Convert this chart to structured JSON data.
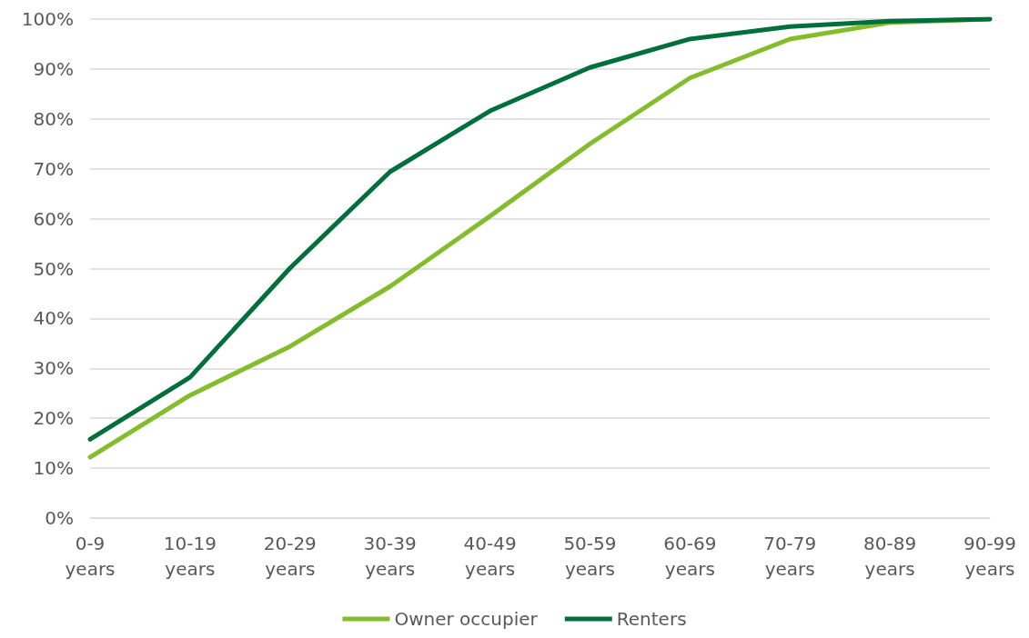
{
  "chart_data": {
    "type": "line",
    "categories": [
      "0-9 years",
      "10-19 years",
      "20-29 years",
      "30-39 years",
      "40-49 years",
      "50-59 years",
      "60-69 years",
      "70-79 years",
      "80-89 years",
      "90-99 years"
    ],
    "series": [
      {
        "name": "Owner occupier",
        "color": "#84bd2b",
        "values": [
          12.2,
          24.6,
          34.4,
          46.4,
          60.5,
          75,
          88.2,
          96,
          99.3,
          100
        ]
      },
      {
        "name": "Renters",
        "color": "#006f3c",
        "values": [
          15.8,
          28.2,
          50.1,
          69.4,
          81.6,
          90.3,
          96,
          98.5,
          99.6,
          100
        ]
      }
    ],
    "ylim": [
      0,
      100
    ],
    "yticks": [
      {
        "value": 0,
        "label": "0%"
      },
      {
        "value": 10,
        "label": "10%"
      },
      {
        "value": 20,
        "label": "20%"
      },
      {
        "value": 30,
        "label": "30%"
      },
      {
        "value": 40,
        "label": "40%"
      },
      {
        "value": 50,
        "label": "50%"
      },
      {
        "value": 60,
        "label": "60%"
      },
      {
        "value": 70,
        "label": "70%"
      },
      {
        "value": 80,
        "label": "80%"
      },
      {
        "value": 90,
        "label": "90%"
      },
      {
        "value": 100,
        "label": "100%"
      }
    ],
    "grid": "y",
    "legend": "bottom",
    "marker": "none",
    "line_style": "solid"
  }
}
